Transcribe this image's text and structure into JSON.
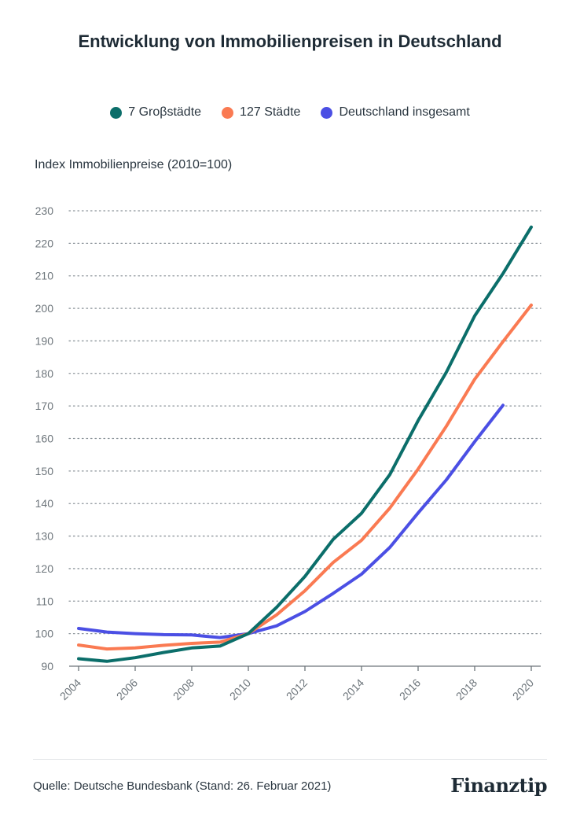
{
  "title": "Entwicklung von Immobilienpreisen in Deutschland",
  "source": "Quelle: Deutsche Bundesbank (Stand: 26. Februar 2021)",
  "brand": "Finanztip",
  "chart_data": {
    "type": "line",
    "title": "Entwicklung von Immobilienpreisen in Deutschland",
    "xlabel": "",
    "ylabel": "Index Immobilienpreise (2010=100)",
    "x": [
      2004,
      2005,
      2006,
      2007,
      2008,
      2009,
      2010,
      2011,
      2012,
      2013,
      2014,
      2015,
      2016,
      2017,
      2018,
      2019,
      2020
    ],
    "xticks": [
      "2004",
      "2006",
      "2008",
      "2010",
      "2012",
      "2014",
      "2016",
      "2018",
      "2020"
    ],
    "ylim": [
      90,
      230
    ],
    "yticks": [
      90,
      100,
      110,
      120,
      130,
      140,
      150,
      160,
      170,
      180,
      190,
      200,
      210,
      220,
      230
    ],
    "grid": true,
    "legend_position": "top",
    "series": [
      {
        "name": "7 Groβstädte",
        "color": "#0b6e6a",
        "values": [
          92.3,
          91.5,
          92.6,
          94.2,
          95.6,
          96.2,
          100,
          108.1,
          117.6,
          129.0,
          137.0,
          148.9,
          165.5,
          180.4,
          197.7,
          210.7,
          225.0
        ]
      },
      {
        "name": "127 Städte",
        "color": "#fa7a52",
        "values": [
          96.5,
          95.3,
          95.6,
          96.4,
          97.0,
          97.4,
          100,
          105.8,
          113.2,
          121.9,
          128.7,
          138.6,
          150.6,
          163.8,
          178.2,
          189.8,
          201.0
        ]
      },
      {
        "name": "Deutschland insgesamt",
        "color": "#4b4fe4",
        "values": [
          101.6,
          100.5,
          100.0,
          99.7,
          99.6,
          98.8,
          100,
          102.4,
          106.8,
          112.4,
          118.3,
          126.5,
          137.1,
          147.3,
          159.0,
          170.2,
          null
        ]
      }
    ]
  }
}
